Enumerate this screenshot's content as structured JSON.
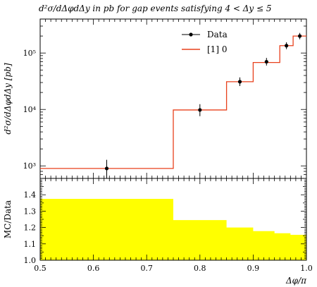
{
  "chart_data": [
    {
      "type": "line",
      "title": "d²σ/dΔφdΔy in pb for gap events satisfying 4 < Δy ≤ 5",
      "ylabel": "d²σ/dΔφdΔy [pb]",
      "xlabel": "Δφ/π",
      "xlim": [
        0.5,
        1.0
      ],
      "ylim": [
        600,
        400000
      ],
      "yscale": "log",
      "x_ticks": [
        0.5,
        0.6,
        0.7,
        0.8,
        0.9,
        1.0
      ],
      "x_tick_labels": [
        "0.5",
        "0.6",
        "0.7",
        "0.8",
        "0.9",
        "1.0"
      ],
      "y_ticks": [
        1000,
        10000,
        100000
      ],
      "y_tick_labels": [
        "10³",
        "10⁴",
        "10⁵"
      ],
      "legend_position": "top-right",
      "series": [
        {
          "name": "Data",
          "style": "points-with-errors",
          "color": "#000000",
          "x": [
            0.625,
            0.8,
            0.875,
            0.925,
            0.9625,
            0.9875
          ],
          "y": [
            900,
            9800,
            31000,
            70000,
            135000,
            200000
          ],
          "y_err_low": [
            300,
            2200,
            5000,
            10000,
            18000,
            25000
          ],
          "y_err_high": [
            380,
            2600,
            6000,
            12000,
            20000,
            27000
          ]
        },
        {
          "name": "[1] 0",
          "style": "histogram",
          "color": "#e8401c",
          "bin_edges": [
            0.5,
            0.75,
            0.85,
            0.9,
            0.95,
            0.975,
            1.0
          ],
          "values": [
            900,
            9800,
            31000,
            68000,
            135000,
            200000
          ]
        }
      ]
    },
    {
      "type": "area",
      "ylabel": "MC/Data",
      "xlabel": "Δφ/π",
      "xlim": [
        0.5,
        1.0
      ],
      "ylim": [
        1.0,
        1.5
      ],
      "y_ticks": [
        1.0,
        1.1,
        1.2,
        1.3,
        1.4
      ],
      "y_tick_labels": [
        "1.0",
        "1.1",
        "1.2",
        "1.3",
        "1.4"
      ],
      "fill_color": "#ffff00",
      "bin_edges": [
        0.5,
        0.75,
        0.85,
        0.9,
        0.94,
        0.97,
        1.0
      ],
      "values": [
        1.375,
        1.245,
        1.2,
        1.178,
        1.165,
        1.155
      ]
    }
  ]
}
